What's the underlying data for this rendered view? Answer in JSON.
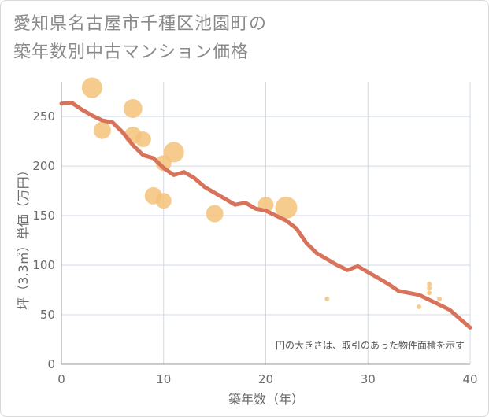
{
  "title": {
    "line1": "愛知県名古屋市千種区池園町の",
    "line2": "築年数別中古マンション価格"
  },
  "colors": {
    "line": "#d9725a",
    "bubble": "#f5c27a",
    "grid": "#cfdbe6",
    "axis": "#9a9a9a"
  },
  "chart_data": {
    "type": "scatter",
    "xlabel": "築年数（年）",
    "ylabel": "坪（3.3㎡）単価（万円）",
    "xlim": [
      0,
      40
    ],
    "ylim": [
      0,
      285
    ],
    "xticks": [
      "0",
      "10",
      "20",
      "30",
      "40"
    ],
    "xtick_values": [
      0,
      10,
      20,
      30,
      40
    ],
    "yticks": [
      "0",
      "50",
      "100",
      "150",
      "200",
      "250"
    ],
    "ytick_values": [
      0,
      50,
      100,
      150,
      200,
      250
    ],
    "grid": true,
    "note": "円の大きさは、取引のあった物件面積を示す",
    "points": [
      {
        "x": 3,
        "y": 279,
        "r": 13
      },
      {
        "x": 4,
        "y": 236,
        "r": 11
      },
      {
        "x": 7,
        "y": 258,
        "r": 12
      },
      {
        "x": 7,
        "y": 231,
        "r": 11
      },
      {
        "x": 8,
        "y": 227,
        "r": 10
      },
      {
        "x": 10,
        "y": 203,
        "r": 10
      },
      {
        "x": 11,
        "y": 214,
        "r": 13
      },
      {
        "x": 9,
        "y": 170,
        "r": 11
      },
      {
        "x": 10,
        "y": 165,
        "r": 10
      },
      {
        "x": 15,
        "y": 152,
        "r": 11
      },
      {
        "x": 20,
        "y": 161,
        "r": 10
      },
      {
        "x": 22,
        "y": 158,
        "r": 14
      },
      {
        "x": 26,
        "y": 66,
        "r": 3
      },
      {
        "x": 35,
        "y": 58,
        "r": 3
      },
      {
        "x": 36,
        "y": 81,
        "r": 3
      },
      {
        "x": 36,
        "y": 77,
        "r": 3
      },
      {
        "x": 36,
        "y": 72,
        "r": 3
      },
      {
        "x": 37,
        "y": 66,
        "r": 3
      }
    ],
    "trend": {
      "x": [
        0,
        1,
        2,
        3,
        4,
        5,
        6,
        7,
        8,
        9,
        10,
        11,
        12,
        13,
        14,
        15,
        16,
        17,
        18,
        19,
        20,
        21,
        22,
        23,
        24,
        25,
        26,
        27,
        28,
        29,
        30,
        31,
        32,
        33,
        34,
        35,
        36,
        37,
        38,
        39,
        40
      ],
      "y": [
        263,
        264,
        257,
        251,
        246,
        244,
        234,
        221,
        211,
        208,
        198,
        191,
        194,
        188,
        179,
        173,
        167,
        161,
        163,
        157,
        155,
        150,
        145,
        137,
        122,
        112,
        106,
        100,
        95,
        99,
        93,
        87,
        81,
        74,
        72,
        70,
        65,
        60,
        55,
        46,
        37
      ]
    }
  }
}
